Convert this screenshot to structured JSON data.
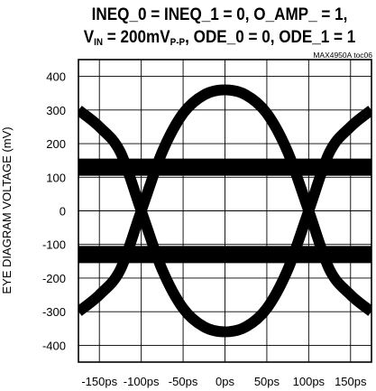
{
  "chart_data": {
    "type": "line",
    "title_line1": "INEQ_0 = INEQ_1 = 0, O_AMP_ = 1,",
    "title_line2_parts": [
      {
        "text": "V",
        "style": "normal"
      },
      {
        "text": "IN",
        "style": "sub"
      },
      {
        "text": " = 200mV",
        "style": "normal"
      },
      {
        "text": "P-P",
        "style": "sub"
      },
      {
        "text": ", ODE_0 = 0, ODE_1 = 1",
        "style": "normal"
      }
    ],
    "note": "MAX4950A toc06",
    "ylabel": "EYE DIAGRAM VOLTAGE (mV)",
    "xlabel": "",
    "x_ticks": [
      "-150ps",
      "-100ps",
      "-50ps",
      "0ps",
      "50ps",
      "100ps",
      "150ps"
    ],
    "x_tick_values": [
      -150,
      -100,
      -50,
      0,
      50,
      100,
      150
    ],
    "y_ticks": [
      "400",
      "300",
      "200",
      "100",
      "0",
      "-100",
      "-200",
      "-300",
      "-400"
    ],
    "y_tick_values": [
      400,
      300,
      200,
      100,
      0,
      -100,
      -200,
      -300,
      -400
    ],
    "xlim": [
      -175,
      175
    ],
    "ylim": [
      -450,
      450
    ],
    "grid": true,
    "series": [
      {
        "values_x": [
          -175,
          -150,
          -125,
          -100,
          -75,
          -50,
          -25,
          0,
          25,
          50,
          75,
          100,
          125,
          150,
          175
        ],
        "values_y": [
          300,
          250,
          175,
          0,
          -175,
          -290,
          -345,
          -360,
          -345,
          -290,
          -175,
          0,
          175,
          250,
          300
        ]
      },
      {
        "values_x": [
          -175,
          -150,
          -125,
          -100,
          -75,
          -50,
          -25,
          0,
          25,
          50,
          75,
          100,
          125,
          150,
          175
        ],
        "values_y": [
          -300,
          -250,
          -175,
          0,
          175,
          290,
          345,
          360,
          345,
          290,
          175,
          0,
          -175,
          -250,
          -300
        ]
      },
      {
        "values_x": [
          -175,
          -150,
          -125,
          -100,
          -75,
          -50,
          -25,
          0,
          25,
          50,
          75,
          100,
          125,
          150,
          175
        ],
        "values_y": [
          130,
          130,
          130,
          130,
          130,
          130,
          130,
          130,
          130,
          130,
          130,
          130,
          130,
          130,
          130
        ]
      },
      {
        "values_x": [
          -175,
          -150,
          -125,
          -100,
          -75,
          -50,
          -25,
          0,
          25,
          50,
          75,
          100,
          125,
          150,
          175
        ],
        "values_y": [
          -130,
          -130,
          -130,
          -130,
          -130,
          -130,
          -130,
          -130,
          -130,
          -130,
          -130,
          -130,
          -130,
          -130,
          -130
        ]
      }
    ],
    "trace_color": "#000000",
    "grid_color": "#000000"
  }
}
